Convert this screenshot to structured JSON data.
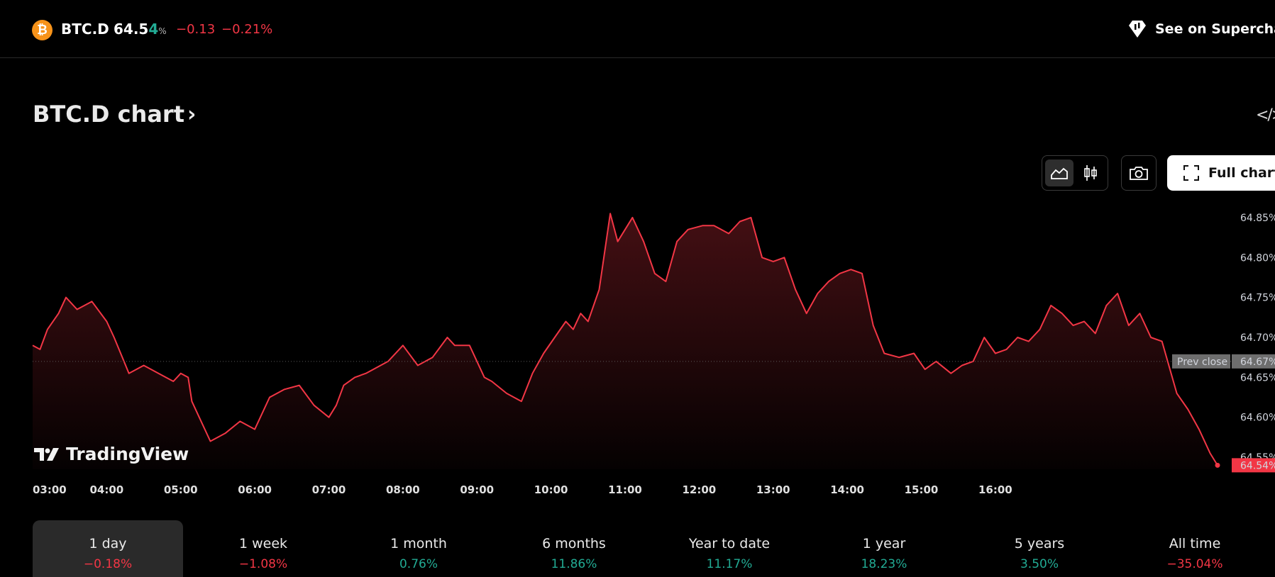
{
  "header": {
    "coin_icon": "bitcoin-icon",
    "coin_glyph": "₿",
    "symbol": "BTC.D",
    "price_main": "64.5",
    "price_last_digit": "4",
    "price_unit": "%",
    "change": "−0.13",
    "change_percent": "−0.21%",
    "supercharts_label": "See on Supercharts"
  },
  "chart_title": {
    "text": "BTC.D chart",
    "chevron": "›",
    "embed_label": "</>"
  },
  "toolbar": {
    "full_chart_label": "Full chart",
    "area_icon": "area-chart-icon",
    "candle_icon": "candlestick-icon",
    "camera_icon": "camera-icon",
    "fullscreen_icon": "fullscreen-icon"
  },
  "brand": {
    "logo_text": "TradingView"
  },
  "chart_data": {
    "type": "area",
    "line_color": "#f23645",
    "ylim": [
      64.535,
      64.865
    ],
    "y_ticks": [
      "64.85%",
      "64.80%",
      "64.75%",
      "64.70%",
      "64.65%",
      "64.60%",
      "64.55%"
    ],
    "y_tick_values": [
      64.85,
      64.8,
      64.75,
      64.7,
      64.65,
      64.6,
      64.55
    ],
    "x_ticks": [
      "03:00",
      "04:00",
      "05:00",
      "06:00",
      "07:00",
      "08:00",
      "09:00",
      "10:00",
      "11:00",
      "12:00",
      "13:00",
      "14:00",
      "15:00",
      "16:00"
    ],
    "prev_close": {
      "label": "Prev close",
      "value": 64.67,
      "value_label": "64.67%"
    },
    "last": {
      "value": 64.54,
      "value_label": "64.54%"
    },
    "x": [
      0,
      0.1,
      0.2,
      0.35,
      0.45,
      0.6,
      0.8,
      1.0,
      1.1,
      1.3,
      1.5,
      1.7,
      1.9,
      2.0,
      2.1,
      2.15,
      2.25,
      2.4,
      2.6,
      2.8,
      3.0,
      3.2,
      3.4,
      3.6,
      3.8,
      4.0,
      4.1,
      4.2,
      4.35,
      4.5,
      4.6,
      4.8,
      5.0,
      5.2,
      5.4,
      5.6,
      5.7,
      5.9,
      6.1,
      6.2,
      6.4,
      6.6,
      6.75,
      6.9,
      7.05,
      7.2,
      7.3,
      7.4,
      7.5,
      7.65,
      7.8,
      7.9,
      8.1,
      8.25,
      8.4,
      8.55,
      8.7,
      8.85,
      9.05,
      9.2,
      9.4,
      9.55,
      9.7,
      9.85,
      10.0,
      10.15,
      10.3,
      10.45,
      10.6,
      10.75,
      10.9,
      11.05,
      11.2,
      11.35,
      11.5,
      11.7,
      11.9,
      12.05,
      12.2,
      12.4,
      12.55,
      12.7,
      12.85,
      13.0,
      13.15,
      13.3,
      13.45,
      13.6,
      13.75,
      13.9,
      14.05,
      14.2,
      14.35,
      14.5,
      14.65,
      14.8,
      14.95,
      15.1,
      15.25,
      15.45,
      15.6,
      15.75,
      15.9,
      16.0
    ],
    "y": [
      64.69,
      64.685,
      64.71,
      64.73,
      64.75,
      64.735,
      64.745,
      64.72,
      64.7,
      64.655,
      64.665,
      64.655,
      64.645,
      64.655,
      64.65,
      64.62,
      64.6,
      64.57,
      64.58,
      64.595,
      64.585,
      64.625,
      64.635,
      64.64,
      64.615,
      64.6,
      64.615,
      64.64,
      64.65,
      64.655,
      64.66,
      64.67,
      64.69,
      64.665,
      64.675,
      64.7,
      64.69,
      64.69,
      64.65,
      64.645,
      64.63,
      64.62,
      64.655,
      64.68,
      64.7,
      64.72,
      64.71,
      64.73,
      64.72,
      64.76,
      64.855,
      64.82,
      64.85,
      64.82,
      64.78,
      64.77,
      64.82,
      64.835,
      64.84,
      64.84,
      64.83,
      64.845,
      64.85,
      64.8,
      64.795,
      64.8,
      64.76,
      64.73,
      64.755,
      64.77,
      64.78,
      64.785,
      64.78,
      64.715,
      64.68,
      64.675,
      64.68,
      64.66,
      64.67,
      64.655,
      64.665,
      64.67,
      64.7,
      64.68,
      64.685,
      64.7,
      64.695,
      64.71,
      64.74,
      64.73,
      64.715,
      64.72,
      64.705,
      64.74,
      64.755,
      64.715,
      64.73,
      64.7,
      64.695,
      64.63,
      64.61,
      64.585,
      64.555,
      64.54
    ]
  },
  "timeframes": [
    {
      "label": "1 day",
      "value": "−0.18%",
      "dir": "neg"
    },
    {
      "label": "1 week",
      "value": "−1.08%",
      "dir": "neg"
    },
    {
      "label": "1 month",
      "value": "0.76%",
      "dir": "pos"
    },
    {
      "label": "6 months",
      "value": "11.86%",
      "dir": "pos"
    },
    {
      "label": "Year to date",
      "value": "11.17%",
      "dir": "pos"
    },
    {
      "label": "1 year",
      "value": "18.23%",
      "dir": "pos"
    },
    {
      "label": "5 years",
      "value": "3.50%",
      "dir": "pos"
    },
    {
      "label": "All time",
      "value": "−35.04%",
      "dir": "neg"
    }
  ]
}
